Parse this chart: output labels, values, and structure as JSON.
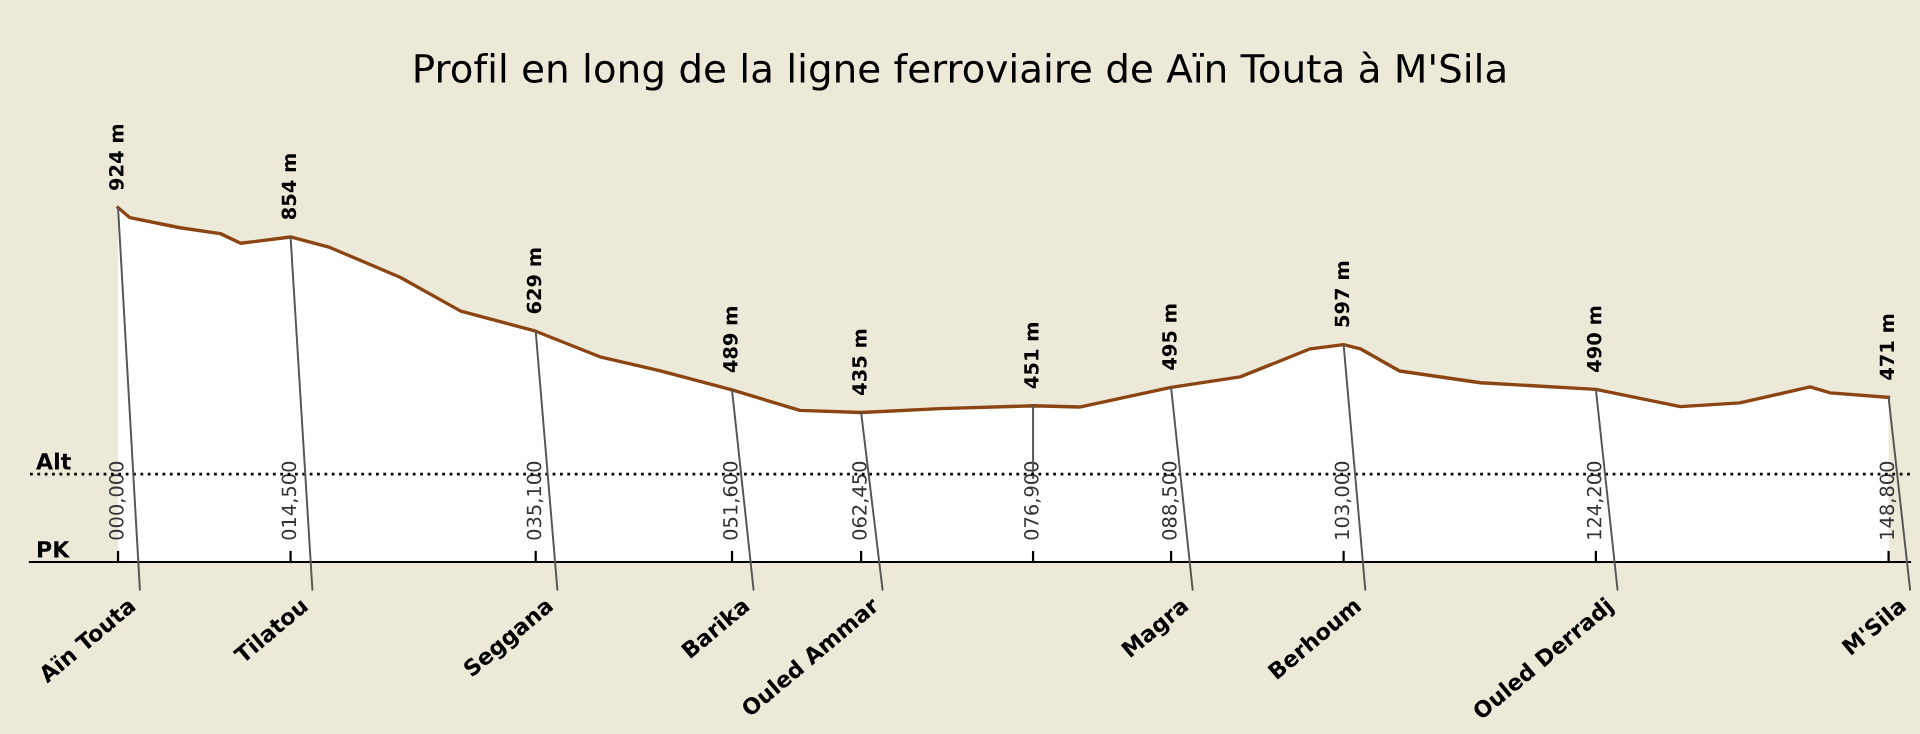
{
  "chart_data": {
    "type": "area",
    "title": "Profil en long de la ligne ferroviaire de Aïn Touta à M'Sila",
    "x": [
      0,
      1000,
      5200,
      8600,
      10300,
      14500,
      17800,
      23700,
      28800,
      35100,
      40500,
      45500,
      51600,
      57300,
      62450,
      69100,
      76900,
      80800,
      88500,
      94300,
      100200,
      103000,
      104400,
      107700,
      114500,
      124200,
      131300,
      136300,
      142200,
      143900,
      148800
    ],
    "values": [
      924,
      900,
      876,
      862,
      839,
      854,
      829,
      758,
      677,
      629,
      568,
      535,
      489,
      440,
      435,
      444,
      451,
      448,
      495,
      520,
      587,
      597,
      587,
      534,
      506,
      490,
      449,
      458,
      496,
      482,
      471
    ],
    "value_labels": [
      "924 m",
      null,
      null,
      null,
      null,
      "854 m",
      null,
      null,
      null,
      "629 m",
      null,
      null,
      "489 m",
      null,
      "435 m",
      null,
      "451 m",
      null,
      "495 m",
      null,
      null,
      "597 m",
      null,
      null,
      null,
      "490 m",
      null,
      null,
      null,
      null,
      "471 m"
    ],
    "color": "#8b4513",
    "xlim": [
      -7400,
      150600
    ],
    "ref_lines": [
      {
        "axis": "y",
        "value": 288,
        "label": "Alt",
        "line_style": "dotted",
        "color": "#000000"
      }
    ],
    "xlabel": "PK",
    "annotations": [
      {
        "text": "Aïn Touta",
        "x": 0,
        "y": 924
      },
      {
        "text": "Tilatou",
        "x": 14500,
        "y": 854
      },
      {
        "text": "Seggana",
        "x": 35100,
        "y": 629
      },
      {
        "text": "Barika",
        "x": 51600,
        "y": 489
      },
      {
        "text": "Ouled Ammar",
        "x": 62450,
        "y": 435
      },
      {
        "text": "Magra",
        "x": 88500,
        "y": 495
      },
      {
        "text": "Berhoum",
        "x": 103000,
        "y": 597
      },
      {
        "text": "Ouled Derradj",
        "x": 124200,
        "y": 490
      },
      {
        "text": "M'Sila",
        "x": 148800,
        "y": 471
      }
    ],
    "xticks": [
      {
        "value": 0,
        "label": "000,000"
      },
      {
        "value": 14500,
        "label": "014,500"
      },
      {
        "value": 35100,
        "label": "035,100"
      },
      {
        "value": 51600,
        "label": "051,600"
      },
      {
        "value": 62450,
        "label": "062,450"
      },
      {
        "value": 76900,
        "label": "076,900"
      },
      {
        "value": 88500,
        "label": "088,500"
      },
      {
        "value": 103000,
        "label": "103,000"
      },
      {
        "value": 124200,
        "label": "124,200"
      },
      {
        "value": 148800,
        "label": "148,800"
      }
    ],
    "tick_labels": "x",
    "grid": false,
    "legend": false
  }
}
